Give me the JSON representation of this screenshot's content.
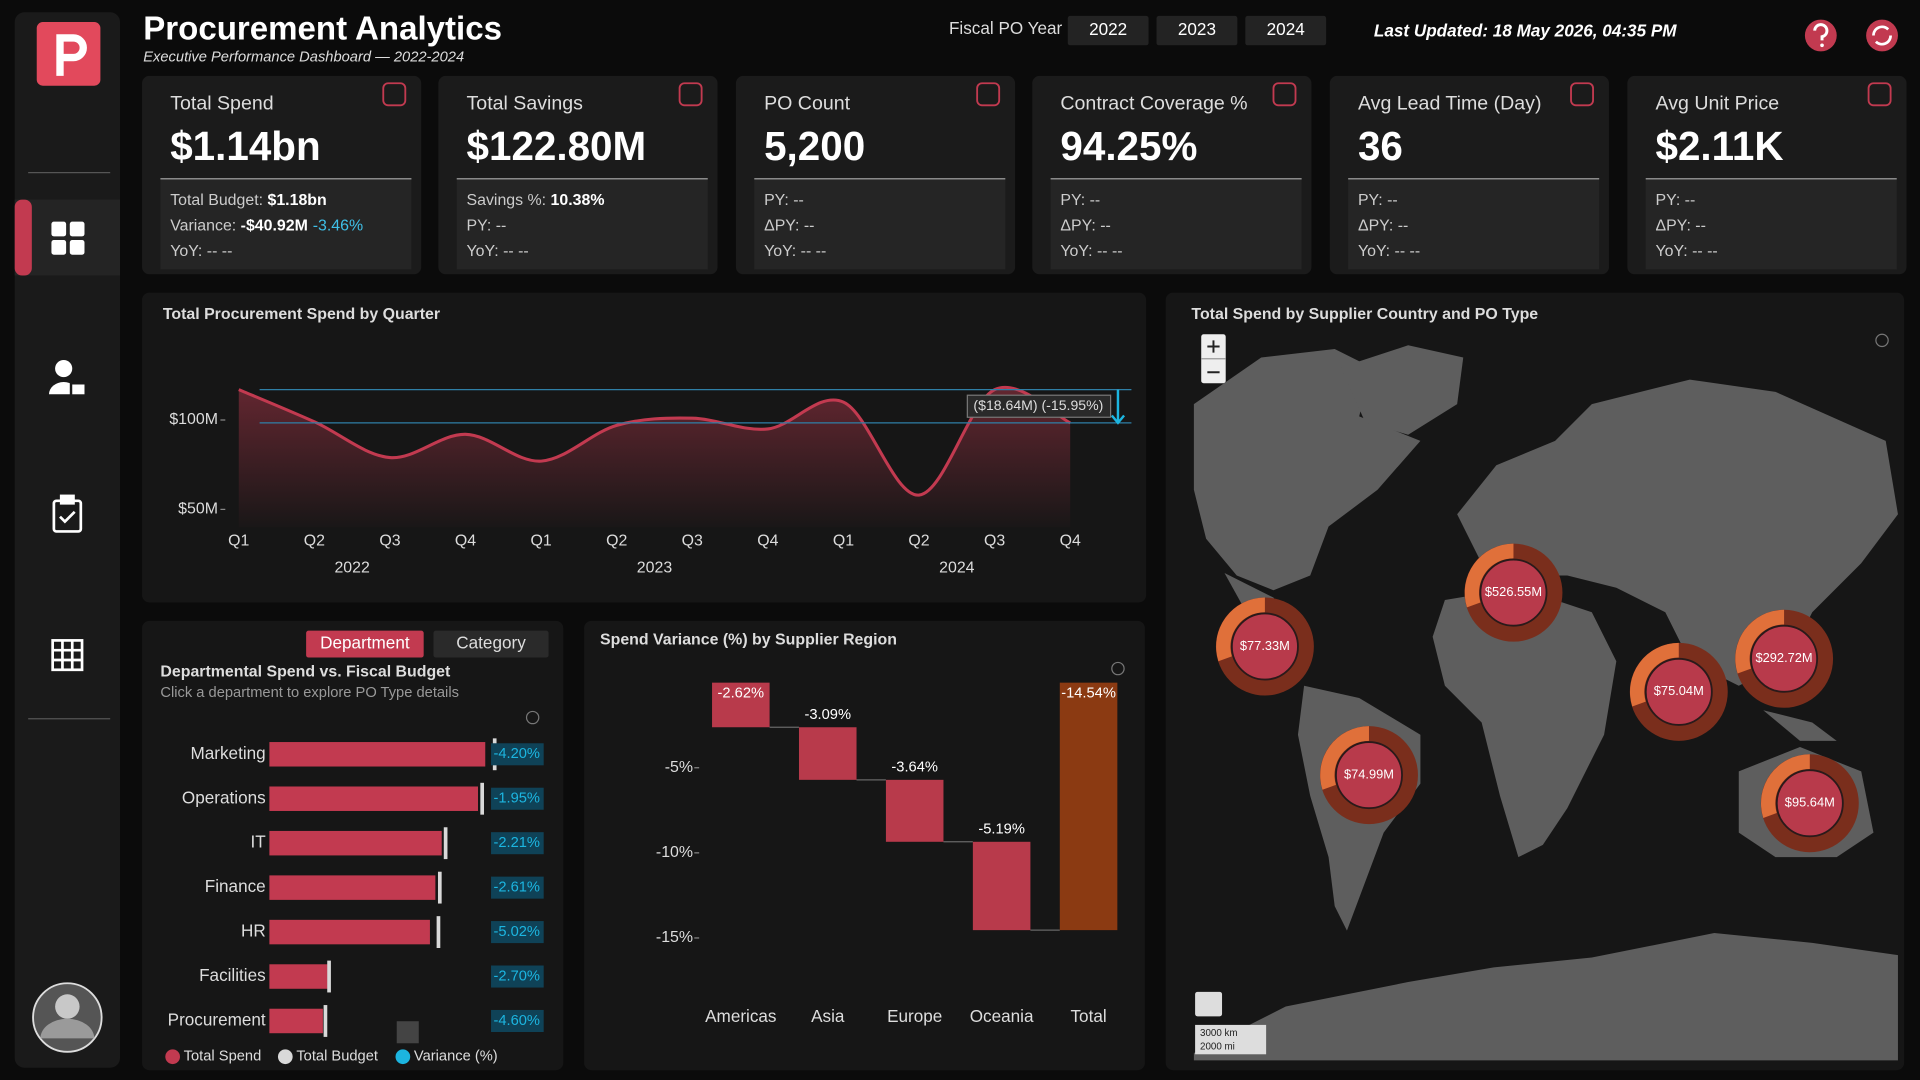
{
  "header": {
    "title": "Procurement Analytics",
    "subtitle": "Executive Performance Dashboard — 2022-2024",
    "year_label": "Fiscal PO Year",
    "years": [
      "2022",
      "2023",
      "2024"
    ],
    "last_updated": "Last Updated: 18 May 2026, 04:35 PM"
  },
  "kpis": [
    {
      "title": "Total Spend",
      "value": "$1.14bn",
      "lines": [
        [
          "Total Budget: ",
          "$1.18bn"
        ],
        [
          "Variance: ",
          "-$40.92M",
          "-3.46%"
        ],
        [
          "YoY: -- --"
        ]
      ]
    },
    {
      "title": "Total Savings",
      "value": "$122.80M",
      "lines": [
        [
          "Savings %: ",
          "10.38%"
        ],
        [
          "PY: --"
        ],
        [
          "YoY: -- --"
        ]
      ]
    },
    {
      "title": "PO Count",
      "value": "5,200",
      "lines": [
        [
          "PY: --"
        ],
        [
          "ΔPY: --"
        ],
        [
          "YoY: -- --"
        ]
      ]
    },
    {
      "title": "Contract Coverage %",
      "value": "94.25%",
      "lines": [
        [
          "PY: --"
        ],
        [
          "ΔPY: --"
        ],
        [
          "YoY: -- --"
        ]
      ]
    },
    {
      "title": "Avg Lead Time (Day)",
      "value": "36",
      "lines": [
        [
          "PY: --"
        ],
        [
          "ΔPY: --"
        ],
        [
          "YoY: -- --"
        ]
      ]
    },
    {
      "title": "Avg Unit Price",
      "value": "$2.11K",
      "lines": [
        [
          "PY: --"
        ],
        [
          "ΔPY: --"
        ],
        [
          "YoY: -- --"
        ]
      ]
    }
  ],
  "quarter_chart": {
    "type": "line",
    "title": "Total Procurement Spend by Quarter",
    "categories": [
      "Q1",
      "Q2",
      "Q3",
      "Q4",
      "Q1",
      "Q2",
      "Q3",
      "Q4",
      "Q1",
      "Q2",
      "Q3",
      "Q4"
    ],
    "years": [
      "2022",
      "2023",
      "2024"
    ],
    "values": [
      117,
      99,
      79,
      92,
      77,
      97,
      101,
      95,
      110,
      58,
      117,
      98.4
    ],
    "ylim": [
      40,
      140
    ],
    "yticks": [
      {
        "value": 50,
        "label": "$50M"
      },
      {
        "value": 100,
        "label": "$100M"
      }
    ],
    "color": "#c23a50",
    "annotation": "($18.64M) (-15.95%)"
  },
  "dept_chart": {
    "type": "bar",
    "tabs": [
      "Department",
      "Category"
    ],
    "title": "Departmental Spend vs. Fiscal Budget",
    "subtitle": "Click a department to explore PO Type details",
    "categories": [
      "Marketing",
      "Operations",
      "IT",
      "Finance",
      "HR",
      "Facilities",
      "Procurement"
    ],
    "spend": [
      238,
      230,
      190,
      183,
      177,
      64,
      59
    ],
    "budget": [
      248.4,
      234.6,
      194.3,
      187.9,
      186.4,
      65.8,
      61.8
    ],
    "variance": [
      -4.2,
      -1.95,
      -2.21,
      -2.61,
      -5.02,
      -2.7,
      -4.6
    ],
    "value_labels": [
      "-4.20%",
      "-1.95%",
      "-2.21%",
      "-2.61%",
      "-5.02%",
      "-2.70%",
      "-4.60%"
    ],
    "legend": [
      "Total Spend",
      "Total Budget",
      "Variance (%)"
    ],
    "colors": {
      "spend": "#c23a50",
      "budget": "#d9d9d9",
      "variance": "#1cb5e0"
    }
  },
  "variance_chart": {
    "type": "waterfall",
    "title": "Spend Variance (%) by Supplier Region",
    "categories": [
      "Americas",
      "Asia",
      "Europe",
      "Oceania",
      "Total"
    ],
    "values": [
      -2.62,
      -3.09,
      -3.64,
      -5.19,
      -14.54
    ],
    "value_labels": [
      "-2.62%",
      "-3.09%",
      "-3.64%",
      "-5.19%",
      "-14.54%"
    ],
    "measures": [
      "relative",
      "relative",
      "relative",
      "relative",
      "total"
    ],
    "ylim": [
      -16,
      0
    ],
    "yticks": [
      {
        "value": -5,
        "label": "-5%"
      },
      {
        "value": -10,
        "label": "-10%"
      },
      {
        "value": -15,
        "label": "-15%"
      }
    ],
    "colors": {
      "relative": "#b83a4b",
      "total": "#8b3a12"
    }
  },
  "map": {
    "title": "Total Spend by Supplier Country and PO Type",
    "bubbles": [
      {
        "value": 526.55,
        "label": "$526.55M"
      },
      {
        "value": 77.33,
        "label": "$77.33M"
      },
      {
        "value": 74.99,
        "label": "$74.99M"
      },
      {
        "value": 75.04,
        "label": "$75.04M"
      },
      {
        "value": 292.72,
        "label": "$292.72M"
      },
      {
        "value": 95.64,
        "label": "$95.64M"
      }
    ],
    "scale": [
      "3000 km",
      "2000 mi"
    ]
  }
}
